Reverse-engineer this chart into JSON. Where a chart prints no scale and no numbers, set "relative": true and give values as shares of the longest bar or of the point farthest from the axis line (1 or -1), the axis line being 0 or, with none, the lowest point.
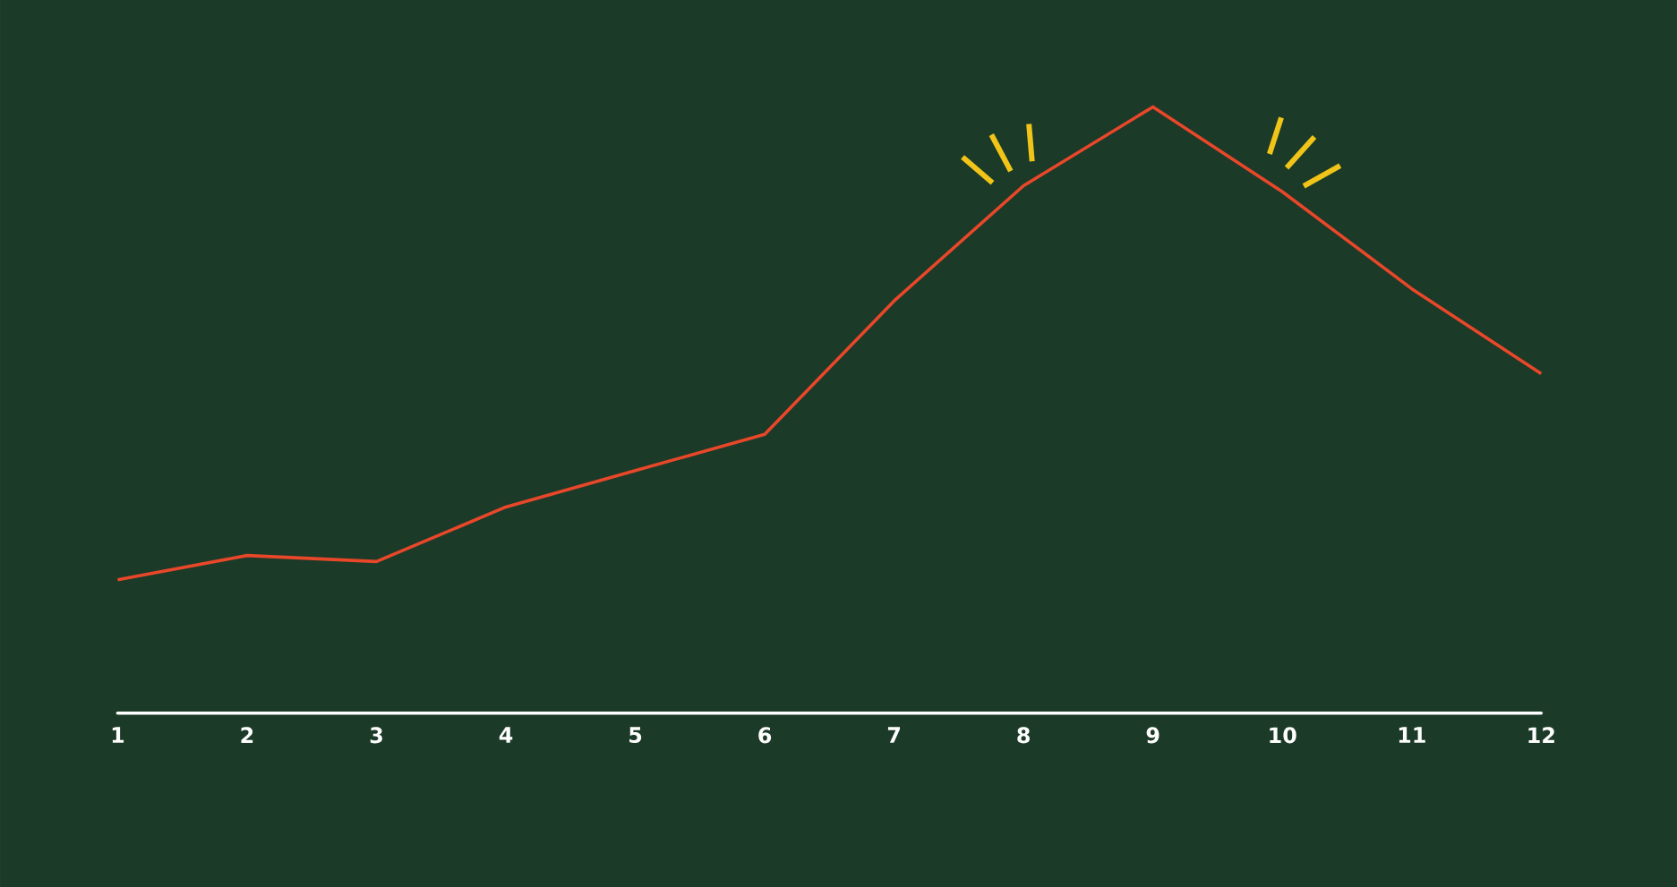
{
  "chart_data": {
    "type": "line",
    "relative": true,
    "color": "#e8472a",
    "categories": [
      "1",
      "2",
      "3",
      "4",
      "5",
      "6",
      "7",
      "8",
      "9",
      "10",
      "11",
      "12"
    ],
    "values": [
      0.22,
      0.26,
      0.25,
      0.34,
      0.4,
      0.46,
      0.68,
      0.87,
      1.0,
      0.86,
      0.7,
      0.56
    ]
  }
}
